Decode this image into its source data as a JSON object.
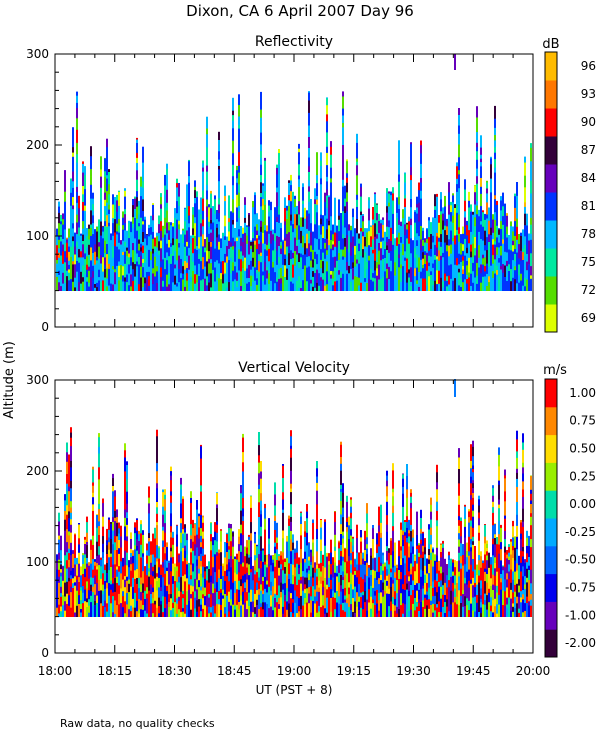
{
  "figure": {
    "title": "Dixon, CA   6 April 2007   Day  96",
    "footnote": "Raw data, no quality checks",
    "ylabel": "Altitude  (m)",
    "xlabel": "UT  (PST + 8)"
  },
  "chart_data": [
    {
      "type": "heatmap",
      "title": "Reflectivity",
      "colorbar_label": "dB",
      "colorbar_ticks": [
        "69",
        "72",
        "75",
        "78",
        "81",
        "84",
        "87",
        "90",
        "93",
        "96"
      ],
      "colorbar_colors": [
        "#ddff00",
        "#55dd00",
        "#00e8a0",
        "#00b8ff",
        "#0033ff",
        "#6600bb",
        "#33003a",
        "#ff0000",
        "#ff7700",
        "#ffbb00"
      ],
      "x_ticks": [
        "18:00",
        "18:15",
        "18:30",
        "18:45",
        "19:00",
        "19:15",
        "19:30",
        "19:45",
        "20:00"
      ],
      "xlim": [
        "18:00",
        "20:00"
      ],
      "y_ticks": [
        "0",
        "100",
        "200",
        "300"
      ],
      "ylim": [
        0,
        300
      ],
      "data_altitude_range": [
        40,
        260
      ]
    },
    {
      "type": "heatmap",
      "title": "Vertical Velocity",
      "colorbar_label": "m/s",
      "colorbar_ticks": [
        "-2.00",
        "-1.00",
        "-0.75",
        "-0.50",
        "-0.25",
        "0.00",
        "0.25",
        "0.50",
        "0.75",
        "1.00"
      ],
      "colorbar_colors": [
        "#33003a",
        "#6600bb",
        "#0000ee",
        "#0066ff",
        "#00aaff",
        "#00ddaa",
        "#99ee00",
        "#ffdd00",
        "#ff8800",
        "#ff0000"
      ],
      "x_ticks": [
        "18:00",
        "18:15",
        "18:30",
        "18:45",
        "19:00",
        "19:15",
        "19:30",
        "19:45",
        "20:00"
      ],
      "xlim": [
        "18:00",
        "20:00"
      ],
      "y_ticks": [
        "0",
        "100",
        "200",
        "300"
      ],
      "ylim": [
        0,
        300
      ],
      "data_altitude_range": [
        40,
        260
      ]
    }
  ]
}
